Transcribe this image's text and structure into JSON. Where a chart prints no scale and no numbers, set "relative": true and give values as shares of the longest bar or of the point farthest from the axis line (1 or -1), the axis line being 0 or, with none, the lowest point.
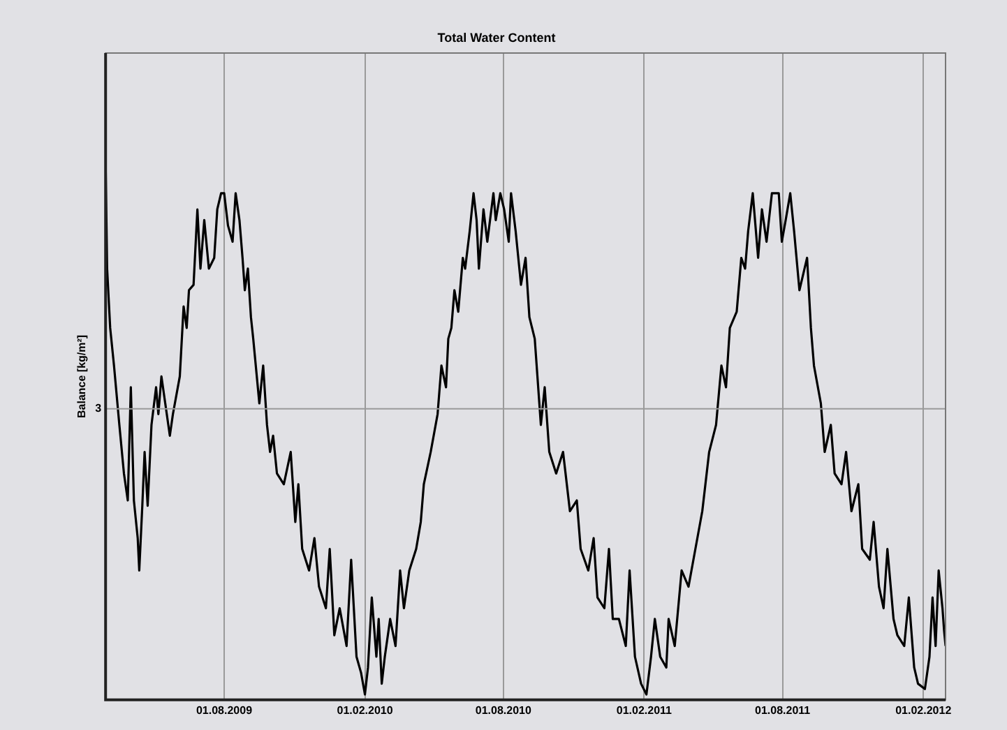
{
  "chart_data": {
    "type": "line",
    "title": "Total Water Content",
    "ylabel": "Balance [kg/m²]",
    "relative": true,
    "grid": "x",
    "legend": false,
    "marker": "none",
    "line_style": "solid",
    "xlim": [
      "2009-02-27",
      "2012-03-01"
    ],
    "xticks": [
      {
        "value": "2009-08-01",
        "label": "01.08.2009"
      },
      {
        "value": "2010-02-01",
        "label": "01.02.2010"
      },
      {
        "value": "2010-08-01",
        "label": "01.08.2010"
      },
      {
        "value": "2011-02-01",
        "label": "01.02.2011"
      },
      {
        "value": "2011-08-01",
        "label": "01.08.2011"
      },
      {
        "value": "2012-02-01",
        "label": "01.02.2012"
      }
    ],
    "ref_lines": [
      {
        "axis": "y",
        "value": 0.54,
        "color": "#9a9a9a"
      }
    ],
    "annotations": [
      "3"
    ],
    "series": [
      {
        "color": "#000000",
        "x": [
          "2009-02-27",
          "2009-03-01",
          "2009-03-05",
          "2009-03-10",
          "2009-03-17",
          "2009-03-23",
          "2009-03-28",
          "2009-04-01",
          "2009-04-05",
          "2009-04-10",
          "2009-04-12",
          "2009-04-16",
          "2009-04-19",
          "2009-04-23",
          "2009-04-28",
          "2009-05-04",
          "2009-05-07",
          "2009-05-11",
          "2009-05-16",
          "2009-05-22",
          "2009-05-26",
          "2009-06-04",
          "2009-06-09",
          "2009-06-13",
          "2009-06-16",
          "2009-06-22",
          "2009-06-27",
          "2009-07-01",
          "2009-07-06",
          "2009-07-12",
          "2009-07-19",
          "2009-07-23",
          "2009-07-28",
          "2009-08-01",
          "2009-08-06",
          "2009-08-12",
          "2009-08-16",
          "2009-08-21",
          "2009-08-25",
          "2009-08-28",
          "2009-09-01",
          "2009-09-05",
          "2009-09-08",
          "2009-09-16",
          "2009-09-21",
          "2009-09-26",
          "2009-09-30",
          "2009-10-04",
          "2009-10-09",
          "2009-10-18",
          "2009-10-27",
          "2009-11-02",
          "2009-11-06",
          "2009-11-11",
          "2009-11-20",
          "2009-11-27",
          "2009-12-03",
          "2009-12-12",
          "2009-12-17",
          "2009-12-23",
          "2009-12-30",
          "2010-01-08",
          "2010-01-14",
          "2010-01-21",
          "2010-01-27",
          "2010-02-01",
          "2010-02-05",
          "2010-02-10",
          "2010-02-16",
          "2010-02-19",
          "2010-02-23",
          "2010-02-27",
          "2010-03-06",
          "2010-03-13",
          "2010-03-19",
          "2010-03-24",
          "2010-03-31",
          "2010-04-09",
          "2010-04-15",
          "2010-04-19",
          "2010-04-28",
          "2010-05-07",
          "2010-05-12",
          "2010-05-18",
          "2010-05-21",
          "2010-05-25",
          "2010-05-29",
          "2010-06-03",
          "2010-06-09",
          "2010-06-12",
          "2010-06-18",
          "2010-06-23",
          "2010-06-27",
          "2010-06-30",
          "2010-07-06",
          "2010-07-11",
          "2010-07-19",
          "2010-07-22",
          "2010-07-28",
          "2010-08-02",
          "2010-08-08",
          "2010-08-11",
          "2010-08-17",
          "2010-08-24",
          "2010-08-30",
          "2010-09-04",
          "2010-09-11",
          "2010-09-19",
          "2010-09-24",
          "2010-09-30",
          "2010-10-09",
          "2010-10-18",
          "2010-10-27",
          "2010-11-05",
          "2010-11-10",
          "2010-11-20",
          "2010-11-27",
          "2010-12-02",
          "2010-12-11",
          "2010-12-17",
          "2010-12-22",
          "2010-12-30",
          "2011-01-08",
          "2011-01-13",
          "2011-01-20",
          "2011-01-28",
          "2011-02-04",
          "2011-02-10",
          "2011-02-15",
          "2011-02-22",
          "2011-03-02",
          "2011-03-05",
          "2011-03-13",
          "2011-03-22",
          "2011-03-31",
          "2011-04-09",
          "2011-04-18",
          "2011-04-27",
          "2011-05-06",
          "2011-05-13",
          "2011-05-19",
          "2011-05-24",
          "2011-06-02",
          "2011-06-08",
          "2011-06-13",
          "2011-06-17",
          "2011-06-23",
          "2011-06-30",
          "2011-07-05",
          "2011-07-11",
          "2011-07-18",
          "2011-07-27",
          "2011-07-31",
          "2011-08-05",
          "2011-08-11",
          "2011-08-16",
          "2011-08-23",
          "2011-09-02",
          "2011-09-07",
          "2011-09-11",
          "2011-09-20",
          "2011-09-25",
          "2011-10-03",
          "2011-10-08",
          "2011-10-17",
          "2011-10-23",
          "2011-10-30",
          "2011-11-08",
          "2011-11-13",
          "2011-11-23",
          "2011-11-28",
          "2011-12-05",
          "2011-12-11",
          "2011-12-16",
          "2011-12-24",
          "2011-12-29",
          "2012-01-07",
          "2012-01-13",
          "2012-01-20",
          "2012-01-25",
          "2012-02-03",
          "2012-02-09",
          "2012-02-13",
          "2012-02-17",
          "2012-02-21",
          "2012-02-26",
          "2012-02-28",
          "2012-03-01"
        ],
        "values": [
          1.0,
          0.8,
          0.69,
          0.62,
          0.51,
          0.42,
          0.37,
          0.58,
          0.37,
          0.3,
          0.24,
          0.36,
          0.46,
          0.36,
          0.51,
          0.58,
          0.53,
          0.6,
          0.55,
          0.49,
          0.53,
          0.6,
          0.73,
          0.69,
          0.76,
          0.77,
          0.91,
          0.8,
          0.89,
          0.8,
          0.82,
          0.91,
          0.94,
          0.94,
          0.88,
          0.85,
          0.94,
          0.89,
          0.82,
          0.76,
          0.8,
          0.71,
          0.67,
          0.55,
          0.62,
          0.51,
          0.46,
          0.49,
          0.42,
          0.4,
          0.46,
          0.33,
          0.4,
          0.28,
          0.24,
          0.3,
          0.21,
          0.17,
          0.28,
          0.12,
          0.17,
          0.1,
          0.26,
          0.08,
          0.05,
          0.01,
          0.06,
          0.19,
          0.08,
          0.15,
          0.03,
          0.08,
          0.15,
          0.1,
          0.24,
          0.17,
          0.24,
          0.28,
          0.33,
          0.4,
          0.46,
          0.53,
          0.62,
          0.58,
          0.67,
          0.69,
          0.76,
          0.72,
          0.82,
          0.8,
          0.87,
          0.94,
          0.89,
          0.8,
          0.91,
          0.85,
          0.94,
          0.89,
          0.94,
          0.91,
          0.85,
          0.94,
          0.87,
          0.77,
          0.82,
          0.71,
          0.67,
          0.51,
          0.58,
          0.46,
          0.42,
          0.46,
          0.35,
          0.37,
          0.28,
          0.24,
          0.3,
          0.19,
          0.17,
          0.28,
          0.15,
          0.15,
          0.1,
          0.24,
          0.08,
          0.03,
          0.01,
          0.08,
          0.15,
          0.08,
          0.06,
          0.15,
          0.1,
          0.24,
          0.21,
          0.28,
          0.35,
          0.46,
          0.51,
          0.62,
          0.58,
          0.69,
          0.72,
          0.82,
          0.8,
          0.87,
          0.94,
          0.82,
          0.91,
          0.85,
          0.94,
          0.94,
          0.85,
          0.89,
          0.94,
          0.87,
          0.76,
          0.82,
          0.69,
          0.62,
          0.55,
          0.46,
          0.51,
          0.42,
          0.4,
          0.46,
          0.35,
          0.4,
          0.28,
          0.26,
          0.33,
          0.21,
          0.17,
          0.28,
          0.15,
          0.12,
          0.1,
          0.19,
          0.06,
          0.03,
          0.02,
          0.08,
          0.19,
          0.1,
          0.24,
          0.17,
          0.13,
          0.1
        ]
      }
    ]
  }
}
